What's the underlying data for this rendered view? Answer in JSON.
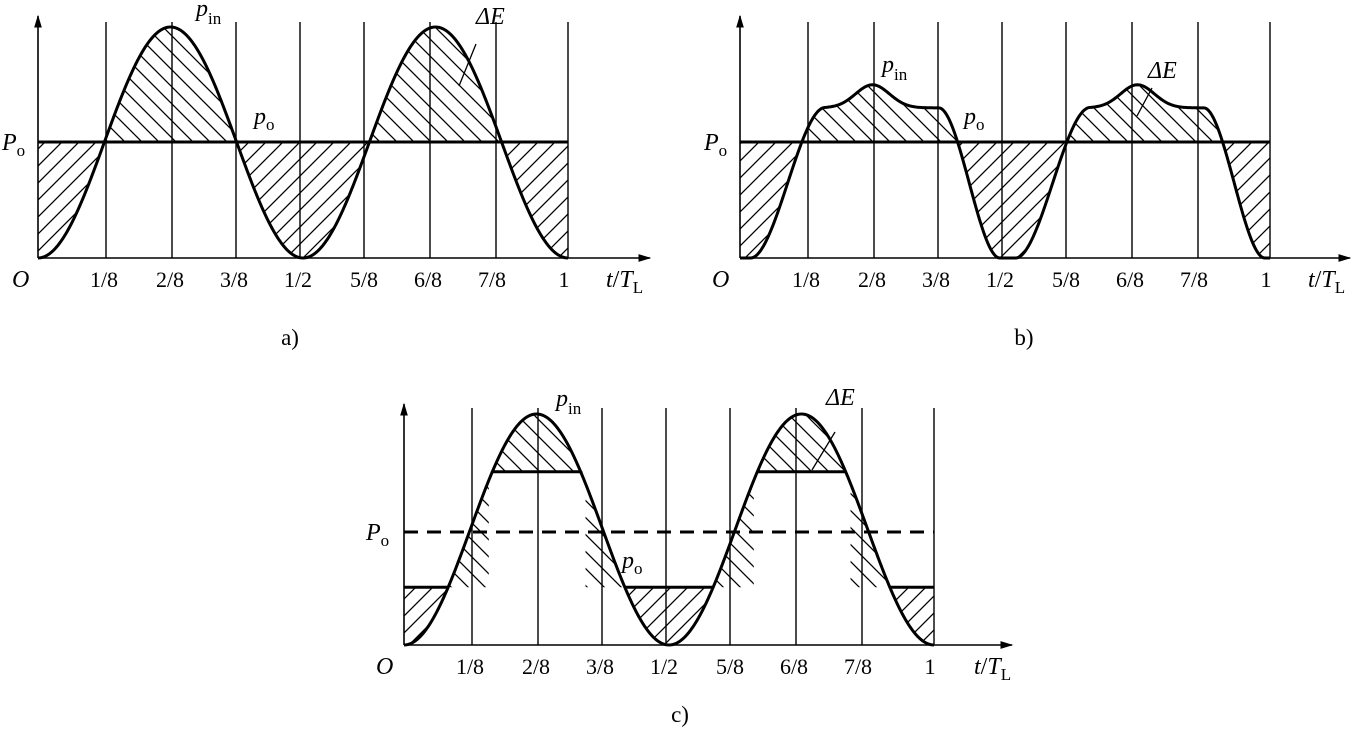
{
  "figure": {
    "panels": [
      {
        "caption": "a)",
        "origin_label": "O",
        "level_label": "P",
        "level_label_sub": "o",
        "x_axis_label": "t",
        "x_axis_unit": "T",
        "x_axis_unit_sub": "L",
        "x_ticks": [
          "1/8",
          "2/8",
          "3/8",
          "1/2",
          "5/8",
          "6/8",
          "7/8",
          "1"
        ],
        "pin_label": "p",
        "pin_label_sub": "in",
        "po_label": "p",
        "po_label_sub": "o",
        "delta_label": "ΔE"
      },
      {
        "caption": "b)",
        "origin_label": "O",
        "level_label": "P",
        "level_label_sub": "o",
        "x_axis_label": "t",
        "x_axis_unit": "T",
        "x_axis_unit_sub": "L",
        "x_ticks": [
          "1/8",
          "2/8",
          "3/8",
          "1/2",
          "5/8",
          "6/8",
          "7/8",
          "1"
        ],
        "pin_label": "p",
        "pin_label_sub": "in",
        "po_label": "p",
        "po_label_sub": "o",
        "delta_label": "ΔE"
      },
      {
        "caption": "c)",
        "origin_label": "O",
        "level_label": "P",
        "level_label_sub": "o",
        "x_axis_label": "t",
        "x_axis_unit": "T",
        "x_axis_unit_sub": "L",
        "x_ticks": [
          "1/8",
          "2/8",
          "3/8",
          "1/2",
          "5/8",
          "6/8",
          "7/8",
          "1"
        ],
        "pin_label": "p",
        "pin_label_sub": "in",
        "po_label": "p",
        "po_label_sub": "o",
        "delta_label": "ΔE"
      }
    ]
  },
  "chart_data": [
    {
      "type": "line",
      "caption": "a)",
      "xlabel": "t/T_L",
      "x_ticks": [
        0.125,
        0.25,
        0.375,
        0.5,
        0.625,
        0.75,
        0.875,
        1
      ],
      "xlim": [
        0,
        1
      ],
      "ylim": [
        0,
        1
      ],
      "level": 0.5,
      "level_style": "solid",
      "series": [
        {
          "name": "p_in",
          "x": [
            0,
            0.125,
            0.25,
            0.375,
            0.5,
            0.625,
            0.75,
            0.875,
            1
          ],
          "y": [
            0,
            0.5,
            1,
            0.5,
            0,
            0.5,
            1,
            0.5,
            0
          ]
        },
        {
          "name": "p_o",
          "x": [
            0,
            1
          ],
          "y": [
            0.5,
            0.5
          ]
        }
      ],
      "hatched_regions": "ΔE"
    },
    {
      "type": "line",
      "caption": "b)",
      "xlabel": "t/T_L",
      "x_ticks": [
        0.125,
        0.25,
        0.375,
        0.5,
        0.625,
        0.75,
        0.875,
        1
      ],
      "xlim": [
        0,
        1
      ],
      "ylim": [
        0,
        1
      ],
      "level": 0.5,
      "level_style": "solid",
      "series": [
        {
          "name": "p_in",
          "x": [
            0,
            0.04,
            0.09,
            0.125,
            0.15,
            0.19,
            0.25,
            0.31,
            0.36,
            0.375,
            0.4,
            0.46,
            0.5,
            0.54,
            0.6,
            0.625,
            0.65,
            0.69,
            0.75,
            0.81,
            0.86,
            0.875,
            0.9,
            0.96,
            1
          ],
          "y": [
            0,
            0.05,
            0.25,
            0.5,
            0.63,
            0.67,
            0.75,
            0.67,
            0.65,
            0.55,
            0.5,
            0.05,
            0,
            0.05,
            0.25,
            0.5,
            0.67,
            0.67,
            0.75,
            0.68,
            0.65,
            0.55,
            0.4,
            0.05,
            0
          ]
        },
        {
          "name": "p_o",
          "x": [
            0,
            1
          ],
          "y": [
            0.5,
            0.5
          ]
        }
      ],
      "hatched_regions": "ΔE"
    },
    {
      "type": "line",
      "caption": "c)",
      "xlabel": "t/T_L",
      "x_ticks": [
        0.125,
        0.25,
        0.375,
        0.5,
        0.625,
        0.75,
        0.875,
        1
      ],
      "xlim": [
        0,
        1
      ],
      "ylim": [
        0,
        1
      ],
      "level": 0.5,
      "level_style": "dashed",
      "series": [
        {
          "name": "p_in",
          "x": [
            0,
            0.125,
            0.25,
            0.375,
            0.5,
            0.625,
            0.75,
            0.875,
            1
          ],
          "y": [
            0,
            0.5,
            1,
            0.5,
            0,
            0.5,
            1,
            0.5,
            0
          ]
        },
        {
          "name": "p_o",
          "x": [
            0,
            0.05,
            0.05,
            0.16,
            0.16,
            0.34,
            0.34,
            0.59,
            0.59,
            0.66,
            0.66,
            0.84,
            0.84,
            1
          ],
          "y": [
            0.25,
            0.25,
            0.25,
            0.25,
            0.75,
            0.75,
            0.25,
            0.25,
            0.25,
            0.25,
            0.75,
            0.75,
            0.25,
            0.25
          ]
        }
      ],
      "hatched_regions": "ΔE"
    }
  ]
}
